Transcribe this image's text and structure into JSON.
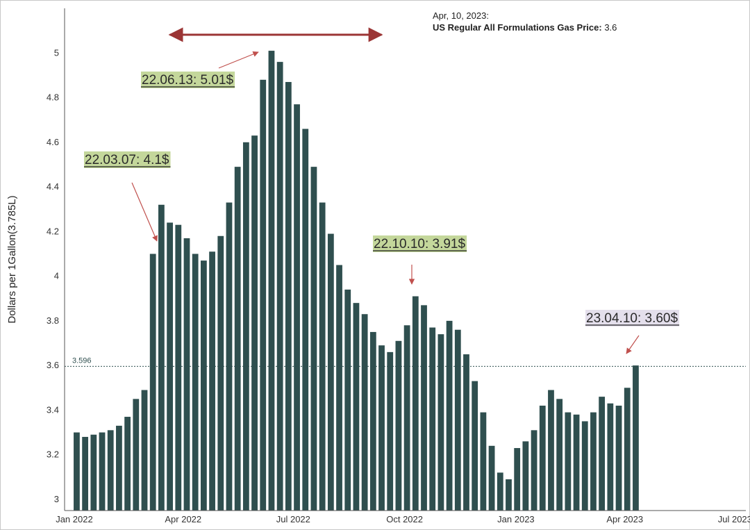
{
  "colors": {
    "bar": "#2f4f4f",
    "arrow": "#c0504d",
    "range_arrow": "#9b3535",
    "ann_green_bg": "#c4d79b",
    "ann_purple_bg": "#e4dfec",
    "ann_underline": "#222222",
    "refline": "#2f4f4f"
  },
  "tooltip": {
    "date": "Apr, 10, 2023:",
    "series": "US Regular All Formulations Gas Price",
    "sep": ":",
    "value": "3.6"
  },
  "reference_line": {
    "value": 3.596,
    "label": "3.596"
  },
  "annotations": [
    {
      "text": "22.03.07: 4.1$",
      "x": "2022-03-07",
      "y": 4.1,
      "style": "green"
    },
    {
      "text": "22.06.13: 5.01$",
      "x": "2022-06-13",
      "y": 5.01,
      "style": "green"
    },
    {
      "text": "22.10.10: 3.91$",
      "x": "2022-10-10",
      "y": 3.91,
      "style": "green"
    },
    {
      "text": "23.04.10: 3.60$",
      "x": "2023-04-10",
      "y": 3.6,
      "style": "purple"
    }
  ],
  "range_arrow": {
    "from": "2022-03-21",
    "to": "2022-09-12"
  },
  "chart_data": {
    "type": "bar",
    "title": "",
    "xlabel": "",
    "ylabel": "Dollars per 1Gallon(3.785L)",
    "ylim": [
      2.95,
      5.2
    ],
    "xlim": [
      "2021-12-24",
      "2023-07-10"
    ],
    "y_ticks": [
      3,
      3.2,
      3.4,
      3.6,
      3.8,
      4,
      4.2,
      4.4,
      4.6,
      4.8,
      5
    ],
    "x_ticks": [
      {
        "date": "2022-01-01",
        "label": "Jan 2022"
      },
      {
        "date": "2022-04-01",
        "label": "Apr 2022"
      },
      {
        "date": "2022-07-01",
        "label": "Jul 2022"
      },
      {
        "date": "2022-10-01",
        "label": "Oct 2022"
      },
      {
        "date": "2023-01-01",
        "label": "Jan 2023"
      },
      {
        "date": "2023-04-01",
        "label": "Apr 2023"
      },
      {
        "date": "2023-07-01",
        "label": "Jul 2023"
      }
    ],
    "grid": false,
    "series": [
      {
        "name": "US Regular All Formulations Gas Price",
        "x": [
          "2022-01-03",
          "2022-01-10",
          "2022-01-17",
          "2022-01-24",
          "2022-01-31",
          "2022-02-07",
          "2022-02-14",
          "2022-02-21",
          "2022-02-28",
          "2022-03-07",
          "2022-03-14",
          "2022-03-21",
          "2022-03-28",
          "2022-04-04",
          "2022-04-11",
          "2022-04-18",
          "2022-04-25",
          "2022-05-02",
          "2022-05-09",
          "2022-05-16",
          "2022-05-23",
          "2022-05-30",
          "2022-06-06",
          "2022-06-13",
          "2022-06-20",
          "2022-06-27",
          "2022-07-04",
          "2022-07-11",
          "2022-07-18",
          "2022-07-25",
          "2022-08-01",
          "2022-08-08",
          "2022-08-15",
          "2022-08-22",
          "2022-08-29",
          "2022-09-05",
          "2022-09-12",
          "2022-09-19",
          "2022-09-26",
          "2022-10-03",
          "2022-10-10",
          "2022-10-17",
          "2022-10-24",
          "2022-10-31",
          "2022-11-07",
          "2022-11-14",
          "2022-11-21",
          "2022-11-28",
          "2022-12-05",
          "2022-12-12",
          "2022-12-19",
          "2022-12-26",
          "2023-01-02",
          "2023-01-09",
          "2023-01-16",
          "2023-01-23",
          "2023-01-30",
          "2023-02-06",
          "2023-02-13",
          "2023-02-20",
          "2023-02-27",
          "2023-03-06",
          "2023-03-13",
          "2023-03-20",
          "2023-03-27",
          "2023-04-03",
          "2023-04-10"
        ],
        "values": [
          3.3,
          3.28,
          3.29,
          3.3,
          3.31,
          3.33,
          3.37,
          3.45,
          3.49,
          4.1,
          4.32,
          4.24,
          4.23,
          4.17,
          4.1,
          4.07,
          4.11,
          4.18,
          4.33,
          4.49,
          4.6,
          4.63,
          4.88,
          5.01,
          4.96,
          4.87,
          4.77,
          4.66,
          4.49,
          4.33,
          4.19,
          4.05,
          3.94,
          3.88,
          3.83,
          3.75,
          3.69,
          3.66,
          3.71,
          3.78,
          3.91,
          3.87,
          3.77,
          3.74,
          3.8,
          3.76,
          3.65,
          3.53,
          3.39,
          3.24,
          3.12,
          3.09,
          3.23,
          3.26,
          3.31,
          3.42,
          3.49,
          3.45,
          3.39,
          3.38,
          3.35,
          3.39,
          3.46,
          3.43,
          3.42,
          3.5,
          3.6
        ]
      }
    ]
  }
}
